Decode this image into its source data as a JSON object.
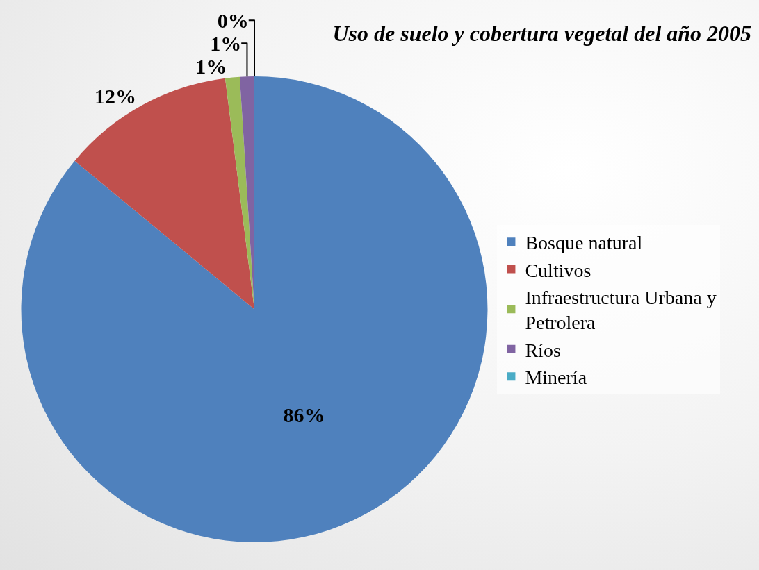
{
  "chart_data": {
    "type": "pie",
    "title": "Uso de suelo y cobertura vegetal del año 2005",
    "categories": [
      "Bosque natural",
      "Cultivos",
      "Infraestructura Urbana y Petrolera",
      "Ríos",
      "Minería"
    ],
    "values": [
      86,
      12,
      1,
      1,
      0
    ],
    "value_labels": [
      "86%",
      "12%",
      "1%",
      "1%",
      "0%"
    ],
    "colors": [
      "#4f81bd",
      "#c0504d",
      "#9bbb59",
      "#8064a2",
      "#4bacc6"
    ],
    "legend": "right"
  }
}
